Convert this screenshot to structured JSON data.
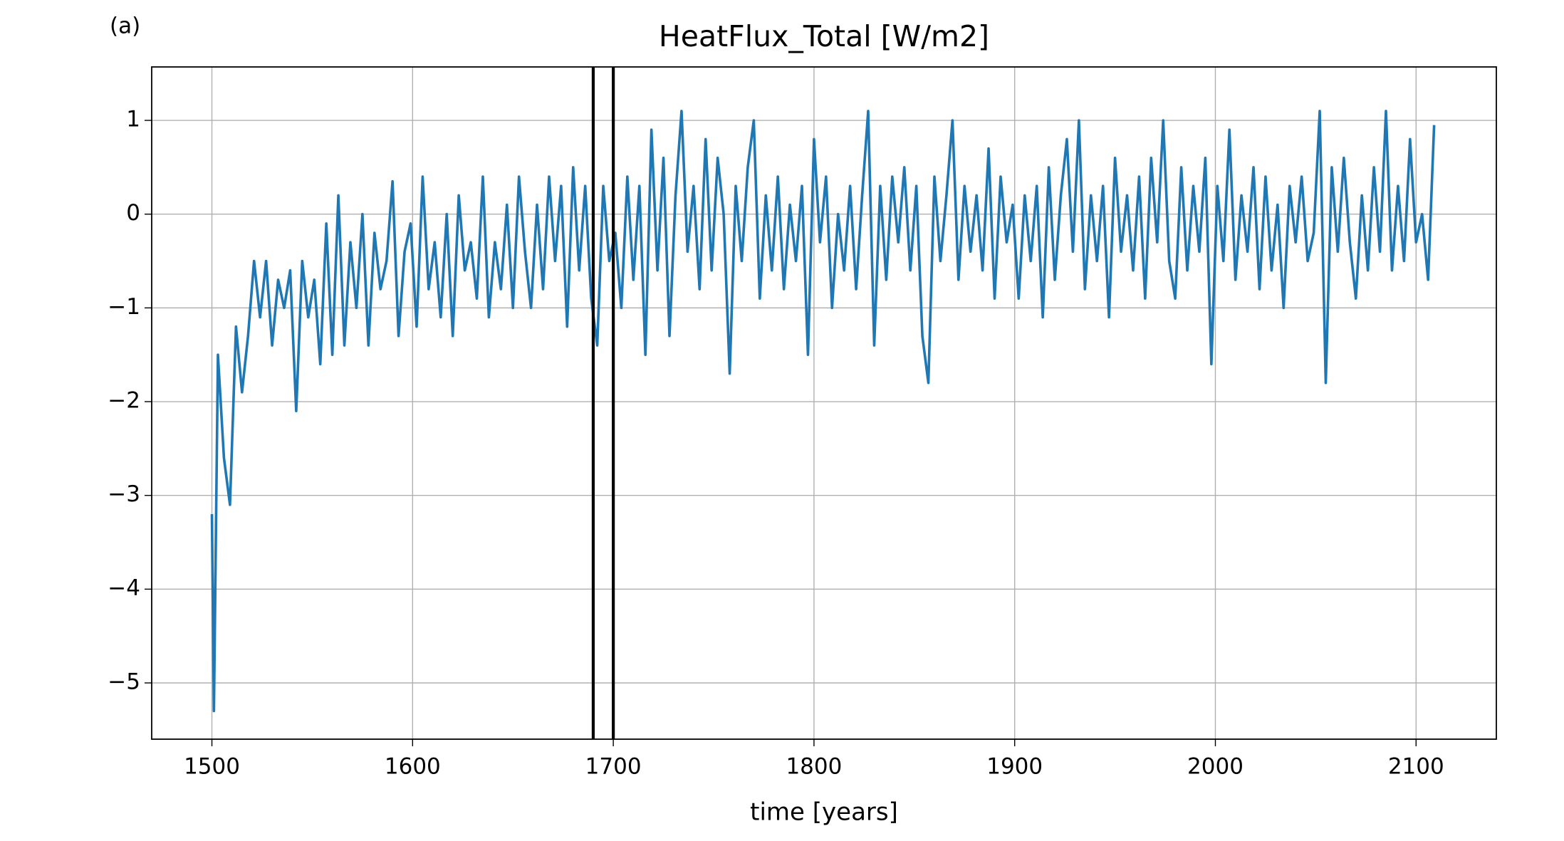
{
  "chart_data": {
    "type": "line",
    "panel_label": "(a)",
    "title": "HeatFlux_Total [W/m2]",
    "xlabel": "time [years]",
    "xlim": [
      1470,
      2140
    ],
    "ylim": [
      -5.6,
      1.57
    ],
    "xticks": [
      1500,
      1600,
      1700,
      1800,
      1900,
      2000,
      2100
    ],
    "yticks": [
      {
        "value": -5,
        "label": "−5"
      },
      {
        "value": -4,
        "label": "−4"
      },
      {
        "value": -3,
        "label": "−3"
      },
      {
        "value": -2,
        "label": "−2"
      },
      {
        "value": -1,
        "label": "−1"
      },
      0,
      1
    ],
    "grid": true,
    "vlines": [
      1690,
      1700
    ],
    "vline_color": "#000000",
    "x": [
      1500,
      1501,
      1503,
      1506,
      1509,
      1512,
      1515,
      1518,
      1521,
      1524,
      1527,
      1530,
      1533,
      1536,
      1539,
      1542,
      1545,
      1548,
      1551,
      1554,
      1557,
      1560,
      1563,
      1566,
      1569,
      1572,
      1575,
      1578,
      1581,
      1584,
      1587,
      1590,
      1593,
      1596,
      1599,
      1602,
      1605,
      1608,
      1611,
      1614,
      1617,
      1620,
      1623,
      1626,
      1629,
      1632,
      1635,
      1638,
      1641,
      1644,
      1647,
      1650,
      1653,
      1656,
      1659,
      1662,
      1665,
      1668,
      1671,
      1674,
      1677,
      1680,
      1683,
      1686,
      1689,
      1692,
      1695,
      1698,
      1701,
      1704,
      1707,
      1710,
      1713,
      1716,
      1719,
      1722,
      1725,
      1728,
      1731,
      1734,
      1737,
      1740,
      1743,
      1746,
      1749,
      1752,
      1755,
      1758,
      1761,
      1764,
      1767,
      1770,
      1773,
      1776,
      1779,
      1782,
      1785,
      1788,
      1791,
      1794,
      1797,
      1800,
      1803,
      1806,
      1809,
      1812,
      1815,
      1818,
      1821,
      1824,
      1827,
      1830,
      1833,
      1836,
      1839,
      1842,
      1845,
      1848,
      1851,
      1854,
      1857,
      1860,
      1863,
      1866,
      1869,
      1872,
      1875,
      1878,
      1881,
      1884,
      1887,
      1890,
      1893,
      1896,
      1899,
      1902,
      1905,
      1908,
      1911,
      1914,
      1917,
      1920,
      1923,
      1926,
      1929,
      1932,
      1935,
      1938,
      1941,
      1944,
      1947,
      1950,
      1953,
      1956,
      1959,
      1962,
      1965,
      1968,
      1971,
      1974,
      1977,
      1980,
      1983,
      1986,
      1989,
      1992,
      1995,
      1998,
      2001,
      2004,
      2007,
      2010,
      2013,
      2016,
      2019,
      2022,
      2025,
      2028,
      2031,
      2034,
      2037,
      2040,
      2043,
      2046,
      2049,
      2052,
      2055,
      2058,
      2061,
      2064,
      2067,
      2070,
      2073,
      2076,
      2079,
      2082,
      2085,
      2088,
      2091,
      2094,
      2097,
      2100,
      2103,
      2106,
      2109
    ],
    "series": [
      {
        "color": "#1f77b4",
        "values": [
          -3.2,
          -5.3,
          -1.5,
          -2.6,
          -3.1,
          -1.2,
          -1.9,
          -1.3,
          -0.5,
          -1.1,
          -0.5,
          -1.4,
          -0.7,
          -1.0,
          -0.6,
          -2.1,
          -0.5,
          -1.1,
          -0.7,
          -1.6,
          -0.1,
          -1.5,
          0.2,
          -1.4,
          -0.3,
          -1.0,
          0.0,
          -1.4,
          -0.2,
          -0.8,
          -0.5,
          0.35,
          -1.3,
          -0.4,
          -0.1,
          -1.2,
          0.4,
          -0.8,
          -0.3,
          -1.1,
          0.0,
          -1.3,
          0.2,
          -0.6,
          -0.3,
          -0.9,
          0.4,
          -1.1,
          -0.3,
          -0.8,
          0.1,
          -1.0,
          0.4,
          -0.4,
          -1.0,
          0.1,
          -0.8,
          0.4,
          -0.5,
          0.3,
          -1.2,
          0.5,
          -0.6,
          0.3,
          -0.9,
          -1.4,
          0.3,
          -0.5,
          -0.2,
          -1.0,
          0.4,
          -0.7,
          0.3,
          -1.5,
          0.9,
          -0.6,
          0.6,
          -1.3,
          0.2,
          1.1,
          -0.4,
          0.3,
          -0.8,
          0.8,
          -0.6,
          0.6,
          0.0,
          -1.7,
          0.3,
          -0.5,
          0.5,
          1.0,
          -0.9,
          0.2,
          -0.6,
          0.4,
          -0.8,
          0.1,
          -0.5,
          0.3,
          -1.5,
          0.8,
          -0.3,
          0.4,
          -1.0,
          0.0,
          -0.6,
          0.3,
          -0.8,
          0.2,
          1.1,
          -1.4,
          0.3,
          -0.7,
          0.4,
          -0.3,
          0.5,
          -0.6,
          0.3,
          -1.3,
          -1.8,
          0.4,
          -0.5,
          0.2,
          1.0,
          -0.7,
          0.3,
          -0.4,
          0.2,
          -0.6,
          0.7,
          -0.9,
          0.4,
          -0.3,
          0.1,
          -0.9,
          0.2,
          -0.5,
          0.3,
          -1.1,
          0.5,
          -0.7,
          0.2,
          0.8,
          -0.4,
          1.0,
          -0.8,
          0.2,
          -0.5,
          0.3,
          -1.1,
          0.6,
          -0.4,
          0.2,
          -0.6,
          0.4,
          -0.9,
          0.6,
          -0.3,
          1.0,
          -0.5,
          -0.9,
          0.5,
          -0.6,
          0.3,
          -0.4,
          0.6,
          -1.6,
          0.3,
          -0.5,
          0.9,
          -0.7,
          0.2,
          -0.4,
          0.5,
          -0.8,
          0.4,
          -0.6,
          0.1,
          -1.0,
          0.3,
          -0.3,
          0.4,
          -0.5,
          -0.2,
          1.1,
          -1.8,
          0.5,
          -0.4,
          0.6,
          -0.3,
          -0.9,
          0.2,
          -0.6,
          0.5,
          -0.4,
          1.1,
          -0.6,
          0.3,
          -0.5,
          0.8,
          -0.3,
          0.0,
          -0.7,
          0.95
        ]
      }
    ]
  }
}
